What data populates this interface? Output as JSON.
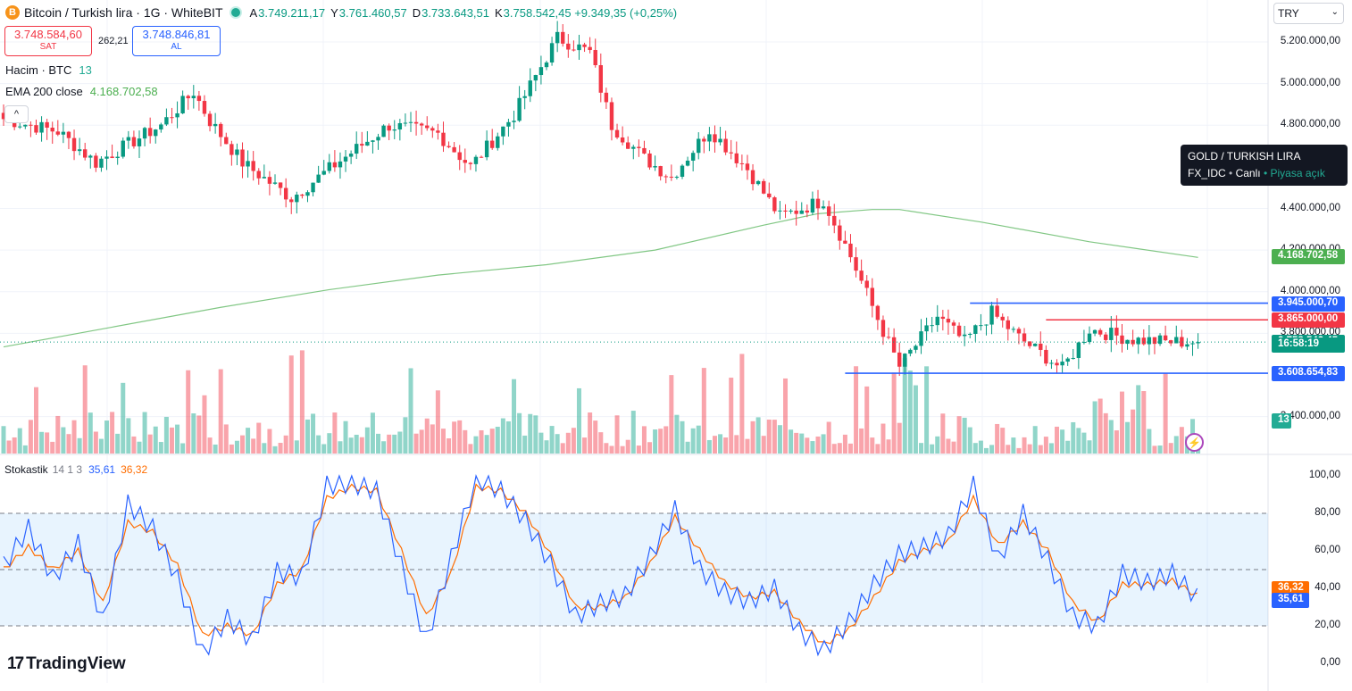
{
  "header": {
    "symbol_title": "Bitcoin / Turkish lira · 1G · WhiteBIT",
    "coin_icon": "B",
    "ohlc": [
      {
        "key": "A",
        "value": "3.749.211,17"
      },
      {
        "key": "Y",
        "value": "3.761.460,57"
      },
      {
        "key": "D",
        "value": "3.733.643,51"
      },
      {
        "key": "K",
        "value": "3.758.542,45 +9.349,35 (+0,25%)"
      }
    ]
  },
  "trade": {
    "sell_price": "3.748.584,60",
    "sell_label": "SAT",
    "spread": "262,21",
    "buy_price": "3.748.846,81",
    "buy_label": "AL"
  },
  "indicators": {
    "volume_label": "Hacim · BTC",
    "volume_value": "13",
    "ema_label": "EMA 200 close",
    "ema_value": "4.168.702,58",
    "collapse_icon": "^"
  },
  "currency": {
    "selected": "TRY",
    "chevron": "⌄"
  },
  "tooltip": {
    "title": "GOLD / TURKISH LIRA",
    "source": "FX_IDC",
    "live": "Canlı",
    "market": "Piyasa açık",
    "sep": "•"
  },
  "stochastic": {
    "label": "Stokastik",
    "params": "14 1 3",
    "k_value": "35,61",
    "d_value": "36,32"
  },
  "branding": {
    "logo_mark": "17",
    "logo_text": "TradingView"
  },
  "price_axis": {
    "labels": [
      {
        "text": "5.200.000,00",
        "value": 5200000
      },
      {
        "text": "5.000.000,00",
        "value": 5000000
      },
      {
        "text": "4.800.000,00",
        "value": 4800000
      },
      {
        "text": "4.400.000,00",
        "value": 4400000
      },
      {
        "text": "4.200.000,00",
        "value": 4200000
      },
      {
        "text": "4.000.000,00",
        "value": 4000000
      },
      {
        "text": "3.800.000,00",
        "value": 3800000
      },
      {
        "text": "3.400.000,00",
        "value": 3400000
      }
    ],
    "tags": [
      {
        "text": "4.168.702,58",
        "value": 4168702.58,
        "color": "#4caf50"
      },
      {
        "text": "3.945.000,70",
        "value": 3945000.7,
        "color": "#2962ff"
      },
      {
        "text": "3.865.000,00",
        "value": 3865000.0,
        "color": "#f23645"
      },
      {
        "text": "3.758.542,45",
        "value": 3758542.45,
        "color": "#089981"
      },
      {
        "text": "16:58:19",
        "value": 3744000,
        "color": "#089981"
      },
      {
        "text": "3.608.654,83",
        "value": 3608654.83,
        "color": "#2962ff"
      },
      {
        "text": "13",
        "value": 3382000,
        "color": "#22ab94"
      }
    ]
  },
  "stoch_axis": {
    "labels": [
      {
        "text": "100,00",
        "value": 100
      },
      {
        "text": "80,00",
        "value": 80
      },
      {
        "text": "60,00",
        "value": 60
      },
      {
        "text": "40,00",
        "value": 40
      },
      {
        "text": "20,00",
        "value": 20
      },
      {
        "text": "0,00",
        "value": 0
      }
    ],
    "tags": [
      {
        "text": "36,32",
        "value": 40.2,
        "color": "#ff6d00"
      },
      {
        "text": "35,61",
        "value": 34.0,
        "color": "#2962ff"
      }
    ]
  },
  "chart_data": {
    "type": "candlestick",
    "series_main": "BTC/TRY daily",
    "ylim_price": [
      3300000,
      5350000
    ],
    "horizontal_levels": [
      {
        "value": 3945000.7,
        "color": "#2962ff",
        "from_index": 178
      },
      {
        "value": 3865000.0,
        "color": "#f23645",
        "from_index": 192
      },
      {
        "value": 3608654.83,
        "color": "#2962ff",
        "from_index": 155
      }
    ],
    "ema200": {
      "color": "#81c784",
      "points": [
        [
          0,
          3735000
        ],
        [
          20,
          3830000
        ],
        [
          40,
          3925000
        ],
        [
          60,
          4010000
        ],
        [
          80,
          4080000
        ],
        [
          100,
          4130000
        ],
        [
          120,
          4200000
        ],
        [
          140,
          4320000
        ],
        [
          150,
          4375000
        ],
        [
          160,
          4395000
        ],
        [
          165,
          4395000
        ],
        [
          180,
          4335000
        ],
        [
          200,
          4240000
        ],
        [
          220,
          4165000
        ]
      ]
    },
    "close_anchors": [
      [
        0,
        4830000
      ],
      [
        10,
        4770000
      ],
      [
        17,
        4620000
      ],
      [
        29,
        4800000
      ],
      [
        35,
        4960000
      ],
      [
        38,
        4820000
      ],
      [
        44,
        4620000
      ],
      [
        53,
        4450000
      ],
      [
        62,
        4630000
      ],
      [
        71,
        4800000
      ],
      [
        80,
        4760000
      ],
      [
        86,
        4600000
      ],
      [
        94,
        4850000
      ],
      [
        102,
        5220000
      ],
      [
        108,
        5150000
      ],
      [
        112,
        4800000
      ],
      [
        118,
        4640000
      ],
      [
        123,
        4550000
      ],
      [
        130,
        4780000
      ],
      [
        137,
        4590000
      ],
      [
        143,
        4360000
      ],
      [
        151,
        4440000
      ],
      [
        156,
        4170000
      ],
      [
        162,
        3810000
      ],
      [
        165,
        3640000
      ],
      [
        172,
        3880000
      ],
      [
        177,
        3760000
      ],
      [
        182,
        3900000
      ],
      [
        187,
        3780000
      ],
      [
        195,
        3630000
      ],
      [
        200,
        3820000
      ],
      [
        208,
        3770000
      ],
      [
        214,
        3760000
      ],
      [
        220,
        3758000
      ]
    ],
    "volume_ylim": [
      0,
      130
    ],
    "stochastic": {
      "ylim": [
        0,
        100
      ],
      "upper": 80,
      "middle": 50,
      "lower": 20,
      "k_anchors": [
        [
          0,
          52
        ],
        [
          4,
          72
        ],
        [
          8,
          45
        ],
        [
          12,
          64
        ],
        [
          16,
          22
        ],
        [
          20,
          85
        ],
        [
          24,
          72
        ],
        [
          28,
          45
        ],
        [
          32,
          5
        ],
        [
          36,
          24
        ],
        [
          40,
          12
        ],
        [
          44,
          49
        ],
        [
          48,
          46
        ],
        [
          52,
          95
        ],
        [
          56,
          96
        ],
        [
          60,
          92
        ],
        [
          64,
          52
        ],
        [
          68,
          12
        ],
        [
          72,
          56
        ],
        [
          76,
          99
        ],
        [
          80,
          92
        ],
        [
          84,
          76
        ],
        [
          88,
          53
        ],
        [
          92,
          25
        ],
        [
          96,
          32
        ],
        [
          100,
          36
        ],
        [
          104,
          57
        ],
        [
          108,
          82
        ],
        [
          112,
          50
        ],
        [
          116,
          38
        ],
        [
          120,
          33
        ],
        [
          124,
          40
        ],
        [
          128,
          17
        ],
        [
          132,
          7
        ],
        [
          136,
          22
        ],
        [
          140,
          42
        ],
        [
          144,
          58
        ],
        [
          148,
          62
        ],
        [
          152,
          68
        ],
        [
          156,
          95
        ],
        [
          160,
          55
        ],
        [
          164,
          80
        ],
        [
          168,
          55
        ],
        [
          172,
          25
        ],
        [
          176,
          20
        ],
        [
          180,
          48
        ],
        [
          184,
          43
        ],
        [
          188,
          48
        ],
        [
          192,
          35
        ]
      ],
      "d_anchors": [
        [
          0,
          50
        ],
        [
          4,
          62
        ],
        [
          8,
          50
        ],
        [
          12,
          60
        ],
        [
          16,
          32
        ],
        [
          20,
          75
        ],
        [
          24,
          70
        ],
        [
          28,
          52
        ],
        [
          32,
          15
        ],
        [
          36,
          20
        ],
        [
          40,
          15
        ],
        [
          44,
          42
        ],
        [
          48,
          50
        ],
        [
          52,
          88
        ],
        [
          56,
          94
        ],
        [
          60,
          92
        ],
        [
          64,
          60
        ],
        [
          68,
          25
        ],
        [
          72,
          48
        ],
        [
          76,
          94
        ],
        [
          80,
          92
        ],
        [
          84,
          80
        ],
        [
          88,
          58
        ],
        [
          92,
          30
        ],
        [
          96,
          30
        ],
        [
          100,
          35
        ],
        [
          104,
          53
        ],
        [
          108,
          78
        ],
        [
          112,
          60
        ],
        [
          116,
          43
        ],
        [
          120,
          35
        ],
        [
          124,
          38
        ],
        [
          128,
          22
        ],
        [
          132,
          10
        ],
        [
          136,
          18
        ],
        [
          140,
          35
        ],
        [
          144,
          54
        ],
        [
          148,
          60
        ],
        [
          152,
          65
        ],
        [
          156,
          88
        ],
        [
          160,
          63
        ],
        [
          164,
          75
        ],
        [
          168,
          60
        ],
        [
          172,
          32
        ],
        [
          176,
          22
        ],
        [
          180,
          42
        ],
        [
          184,
          42
        ],
        [
          188,
          44
        ],
        [
          192,
          36
        ]
      ]
    },
    "up_color": "#089981",
    "down_color": "#f23645"
  }
}
